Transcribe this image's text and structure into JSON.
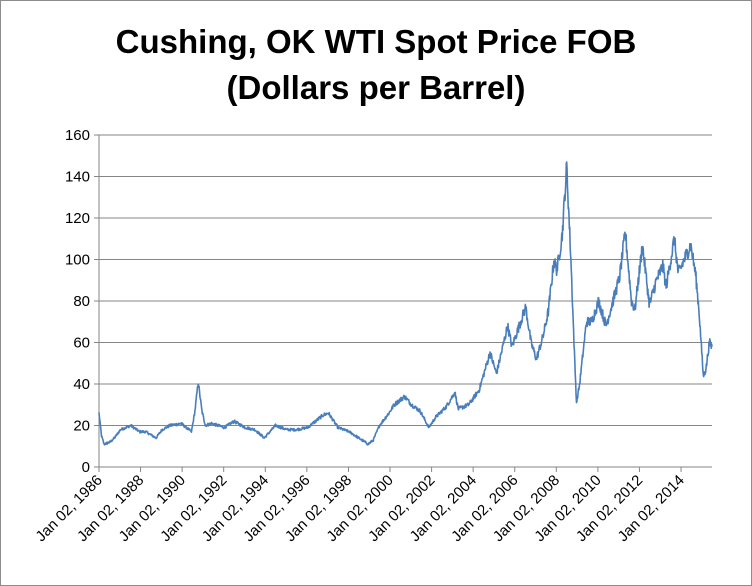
{
  "chart_data": {
    "type": "line",
    "title_lines": [
      "Cushing, OK WTI Spot Price FOB",
      "(Dollars per Barrel)"
    ],
    "xlabel": "",
    "ylabel": "",
    "ylim": [
      0,
      160
    ],
    "y_ticks": [
      0,
      20,
      40,
      60,
      80,
      100,
      120,
      140,
      160
    ],
    "xlim": [
      "1986-01-02",
      "2015-06-30"
    ],
    "x_tick_labels": [
      "Jan 02, 1986",
      "Jan 02, 1988",
      "Jan 02, 1990",
      "Jan 02, 1992",
      "Jan 02, 1994",
      "Jan 02, 1996",
      "Jan 02, 1998",
      "Jan 02, 2000",
      "Jan 02, 2002",
      "Jan 02, 2004",
      "Jan 02, 2006",
      "Jan 02, 2008",
      "Jan 02, 2010",
      "Jan 02, 2012",
      "Jan 02, 2014"
    ],
    "x_tick_dates": [
      "1986-01-02",
      "1988-01-02",
      "1990-01-02",
      "1992-01-02",
      "1994-01-02",
      "1996-01-02",
      "1998-01-02",
      "2000-01-02",
      "2002-01-02",
      "2004-01-02",
      "2006-01-02",
      "2008-01-02",
      "2010-01-02",
      "2012-01-02",
      "2014-01-02"
    ],
    "grid": "horizontal",
    "legend": "none",
    "line_color": "#4a7ebb",
    "series": [
      {
        "x": [
          "1986-01-02",
          "1986-02-15",
          "1986-04-01",
          "1986-07-15",
          "1986-10-01",
          "1987-01-15",
          "1987-07-15",
          "1987-12-15",
          "1988-04-01",
          "1988-10-01",
          "1989-01-15",
          "1989-06-01",
          "1989-12-15",
          "1990-06-15",
          "1990-08-15",
          "1990-10-11",
          "1990-12-15",
          "1991-02-15",
          "1991-06-01",
          "1992-01-15",
          "1992-07-01",
          "1993-01-15",
          "1993-07-01",
          "1993-12-15",
          "1994-07-01",
          "1995-01-15",
          "1995-07-01",
          "1996-01-15",
          "1996-10-15",
          "1997-01-15",
          "1997-07-01",
          "1998-01-15",
          "1998-07-01",
          "1998-12-15",
          "1999-03-15",
          "1999-07-01",
          "1999-12-15",
          "2000-03-15",
          "2000-09-15",
          "2001-01-15",
          "2001-06-15",
          "2001-11-15",
          "2002-03-15",
          "2002-09-15",
          "2003-02-15",
          "2003-04-15",
          "2003-10-15",
          "2004-04-15",
          "2004-10-25",
          "2005-02-15",
          "2005-08-30",
          "2005-11-15",
          "2006-04-15",
          "2006-07-14",
          "2006-10-15",
          "2007-01-18",
          "2007-05-15",
          "2007-08-15",
          "2007-11-20",
          "2008-01-15",
          "2008-04-15",
          "2008-07-03",
          "2008-09-15",
          "2008-11-15",
          "2008-12-22",
          "2009-02-15",
          "2009-06-15",
          "2009-09-15",
          "2010-01-15",
          "2010-05-25",
          "2010-10-15",
          "2011-01-15",
          "2011-04-29",
          "2011-08-15",
          "2011-10-15",
          "2012-02-24",
          "2012-06-26",
          "2012-10-15",
          "2013-02-15",
          "2013-04-15",
          "2013-09-06",
          "2013-11-15",
          "2014-03-15",
          "2014-06-20",
          "2014-09-15",
          "2014-11-15",
          "2015-01-28",
          "2015-03-15",
          "2015-05-15",
          "2015-06-30"
        ],
        "y": [
          26,
          15,
          11,
          12,
          14,
          18,
          20,
          17,
          17,
          14,
          18,
          20,
          21,
          17,
          27,
          41,
          27,
          20,
          21,
          19,
          22,
          19,
          18,
          14,
          20,
          18,
          18,
          19,
          25,
          26,
          19,
          17,
          14,
          11,
          13,
          20,
          26,
          30,
          34,
          30,
          27,
          19,
          24,
          29,
          36,
          28,
          30,
          37,
          55,
          45,
          68,
          58,
          70,
          77,
          60,
          52,
          63,
          75,
          99,
          95,
          112,
          145,
          100,
          55,
          31,
          40,
          70,
          70,
          80,
          68,
          82,
          91,
          113,
          80,
          76,
          107,
          78,
          89,
          97,
          87,
          110,
          93,
          101,
          107,
          93,
          75,
          44,
          47,
          60,
          58
        ]
      }
    ]
  }
}
